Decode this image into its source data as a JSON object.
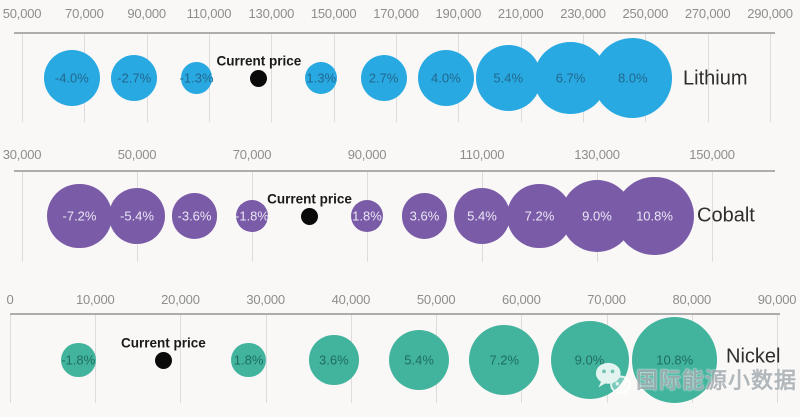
{
  "chart_data": [
    {
      "type": "bubble",
      "row_label": "Lithium",
      "color": "#29a9e1",
      "label_color": "#21688f",
      "xlim": [
        50000,
        290000
      ],
      "grid": true,
      "ticks": [
        {
          "value": 50000,
          "label": "50,000"
        },
        {
          "value": 70000,
          "label": "70,000"
        },
        {
          "value": 90000,
          "label": "90,000"
        },
        {
          "value": 110000,
          "label": "110,000"
        },
        {
          "value": 130000,
          "label": "130,000"
        },
        {
          "value": 150000,
          "label": "150,000"
        },
        {
          "value": 170000,
          "label": "170,000"
        },
        {
          "value": 190000,
          "label": "190,000"
        },
        {
          "value": 210000,
          "label": "210,000"
        },
        {
          "value": 230000,
          "label": "230,000"
        },
        {
          "value": 250000,
          "label": "250,000"
        },
        {
          "value": 270000,
          "label": "270,000"
        },
        {
          "value": 290000,
          "label": "290,000"
        }
      ],
      "current_price": {
        "label": "Current price",
        "value": 126000
      },
      "bubbles": [
        {
          "value": 66000,
          "pct": -4.0,
          "label": "-4.0%"
        },
        {
          "value": 86000,
          "pct": -2.7,
          "label": "-2.7%"
        },
        {
          "value": 106000,
          "pct": -1.3,
          "label": "-1.3%"
        },
        {
          "value": 146000,
          "pct": 1.3,
          "label": "1.3%"
        },
        {
          "value": 166000,
          "pct": 2.7,
          "label": "2.7%"
        },
        {
          "value": 186000,
          "pct": 4.0,
          "label": "4.0%"
        },
        {
          "value": 206000,
          "pct": 5.4,
          "label": "5.4%"
        },
        {
          "value": 226000,
          "pct": 6.7,
          "label": "6.7%"
        },
        {
          "value": 246000,
          "pct": 8.0,
          "label": "8.0%"
        }
      ],
      "bubble_scale": 14
    },
    {
      "type": "bubble",
      "row_label": "Cobalt",
      "color": "#7a5ba8",
      "label_color": "#eae6f3",
      "xlim": [
        30000,
        150000
      ],
      "grid": true,
      "ticks": [
        {
          "value": 30000,
          "label": "30,000"
        },
        {
          "value": 50000,
          "label": "50,000"
        },
        {
          "value": 70000,
          "label": "70,000"
        },
        {
          "value": 90000,
          "label": "90,000"
        },
        {
          "value": 110000,
          "label": "110,000"
        },
        {
          "value": 130000,
          "label": "130,000"
        },
        {
          "value": 150000,
          "label": "150,000"
        }
      ],
      "current_price": {
        "label": "Current price",
        "value": 80000
      },
      "bubbles": [
        {
          "value": 40000,
          "pct": -7.2,
          "label": "-7.2%"
        },
        {
          "value": 50000,
          "pct": -5.4,
          "label": "-5.4%"
        },
        {
          "value": 60000,
          "pct": -3.6,
          "label": "-3.6%"
        },
        {
          "value": 70000,
          "pct": -1.8,
          "label": "-1.8%"
        },
        {
          "value": 90000,
          "pct": 1.8,
          "label": "1.8%"
        },
        {
          "value": 100000,
          "pct": 3.6,
          "label": "3.6%"
        },
        {
          "value": 110000,
          "pct": 5.4,
          "label": "5.4%"
        },
        {
          "value": 120000,
          "pct": 7.2,
          "label": "7.2%"
        },
        {
          "value": 130000,
          "pct": 9.0,
          "label": "9.0%"
        },
        {
          "value": 140000,
          "pct": 10.8,
          "label": "10.8%"
        }
      ],
      "bubble_scale": 12
    },
    {
      "type": "bubble",
      "row_label": "Nickel",
      "color": "#42b39d",
      "label_color": "#1e6e60",
      "xlim": [
        0,
        90000
      ],
      "grid": true,
      "ticks": [
        {
          "value": 0,
          "label": "0"
        },
        {
          "value": 10000,
          "label": "10,000"
        },
        {
          "value": 20000,
          "label": "20,000"
        },
        {
          "value": 30000,
          "label": "30,000"
        },
        {
          "value": 40000,
          "label": "40,000"
        },
        {
          "value": 50000,
          "label": "50,000"
        },
        {
          "value": 60000,
          "label": "60,000"
        },
        {
          "value": 70000,
          "label": "70,000"
        },
        {
          "value": 80000,
          "label": "80,000"
        },
        {
          "value": 90000,
          "label": "90,000"
        }
      ],
      "current_price": {
        "label": "Current price",
        "value": 18000
      },
      "bubbles": [
        {
          "value": 8000,
          "pct": -1.8,
          "label": "-1.8%"
        },
        {
          "value": 28000,
          "pct": 1.8,
          "label": "1.8%"
        },
        {
          "value": 38000,
          "pct": 3.6,
          "label": "3.6%"
        },
        {
          "value": 48000,
          "pct": 5.4,
          "label": "5.4%"
        },
        {
          "value": 58000,
          "pct": 7.2,
          "label": "7.2%"
        },
        {
          "value": 68000,
          "pct": 9.0,
          "label": "9.0%"
        },
        {
          "value": 78000,
          "pct": 10.8,
          "label": "10.8%"
        }
      ],
      "bubble_scale": 13
    }
  ],
  "watermark": {
    "text": "国际能源小数据",
    "icon": "wechat-icon"
  }
}
